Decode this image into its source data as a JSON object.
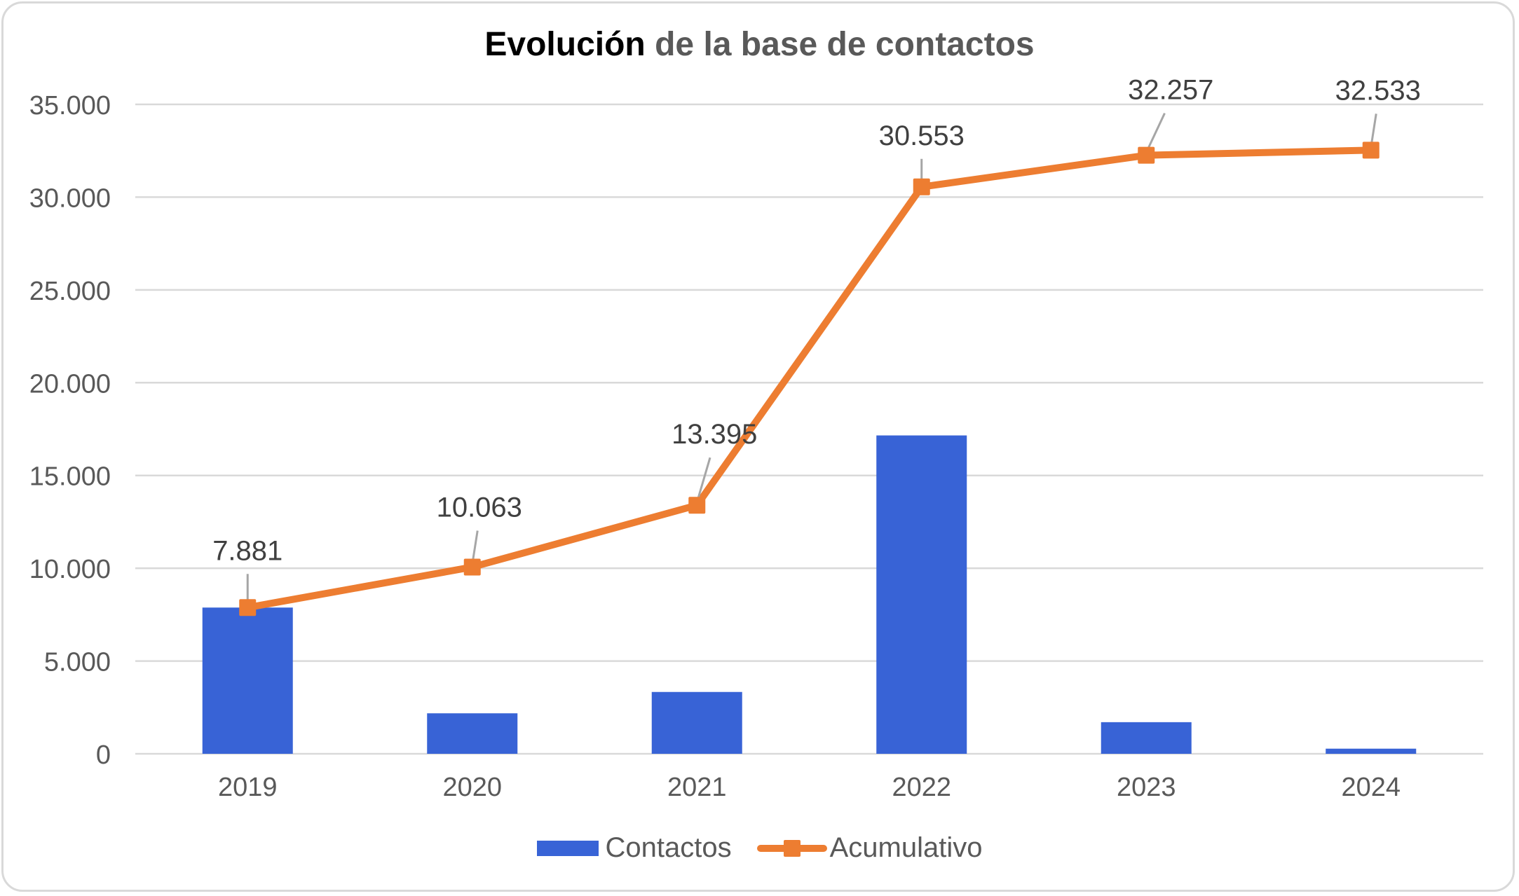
{
  "chart_data": {
    "type": "bar",
    "title_bold": "Evolución",
    "title_rest": " de la base de contactos",
    "title": "Evolución de la base de contactos",
    "xlabel": "",
    "ylabel": "",
    "categories": [
      "2019",
      "2020",
      "2021",
      "2022",
      "2023",
      "2024"
    ],
    "ylim": [
      0,
      35000
    ],
    "yticks": [
      0,
      5000,
      10000,
      15000,
      20000,
      25000,
      30000,
      35000
    ],
    "ytick_labels": [
      "0",
      "5.000",
      "10.000",
      "15.000",
      "20.000",
      "25.000",
      "30.000",
      "35.000"
    ],
    "grid": true,
    "legend_position": "bottom",
    "series": [
      {
        "name": "Contactos",
        "type": "bar",
        "color": "#3863d6",
        "values": [
          7881,
          2182,
          3332,
          17158,
          1704,
          276
        ]
      },
      {
        "name": "Acumulativo",
        "type": "line",
        "marker": "square",
        "color": "#ed7d31",
        "values": [
          7881,
          10063,
          13395,
          30553,
          32257,
          32533
        ],
        "data_labels": [
          "7.881",
          "10.063",
          "13.395",
          "30.553",
          "32.257",
          "32.533"
        ]
      }
    ]
  }
}
